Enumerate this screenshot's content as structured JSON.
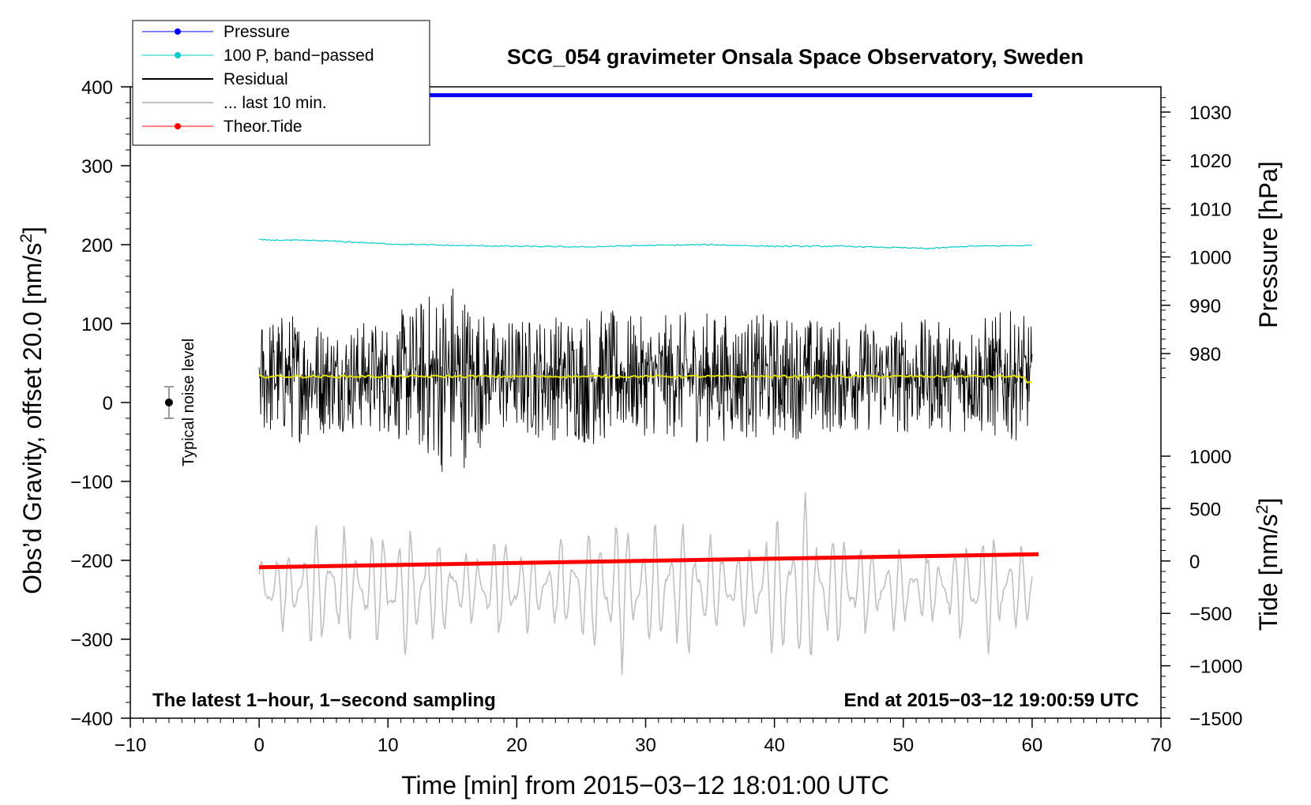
{
  "chart_data": {
    "type": "line",
    "title": "SCG_054 gravimeter Onsala Space Observatory, Sweden",
    "xlabel": "Time [min] from 2015−03−12 18:01:00 UTC",
    "ylabel_left_main": "Obs’d Gravity, offset 20.0 [nm/s",
    "ylabel_left_sup": "2",
    "ylabel_left_end": "]",
    "ylabel_right_pressure": "Pressure [hPa]",
    "ylabel_right_tide_main": "Tide [nm/s",
    "ylabel_right_tide_sup": "2",
    "ylabel_right_tide_end": "]",
    "xlim": [
      -10,
      70
    ],
    "ylim": [
      -400,
      400
    ],
    "pressure_axis_range": [
      975,
      1035
    ],
    "tide_axis_range": [
      -1500,
      1000
    ],
    "x_ticks": [
      "−10",
      "0",
      "10",
      "20",
      "30",
      "40",
      "50",
      "60",
      "70"
    ],
    "x_tick_values": [
      -10,
      0,
      10,
      20,
      30,
      40,
      50,
      60,
      70
    ],
    "y_ticks": [
      "400",
      "300",
      "200",
      "100",
      "0",
      "−100",
      "−200",
      "−300",
      "−400"
    ],
    "y_tick_values": [
      400,
      300,
      200,
      100,
      0,
      -100,
      -200,
      -300,
      -400
    ],
    "pressure_ticks": [
      "1030",
      "1020",
      "1010",
      "1000",
      "990",
      "980"
    ],
    "pressure_tick_values": [
      1030,
      1020,
      1010,
      1000,
      990,
      980
    ],
    "tide_ticks": [
      "1000",
      "500",
      "0",
      "−500",
      "−1000",
      "−1500"
    ],
    "tide_tick_values": [
      1000,
      500,
      0,
      -500,
      -1000,
      -1500
    ],
    "legend_position": "top-left",
    "legend": [
      {
        "label": "Pressure",
        "color": "#0000ff",
        "marker": true
      },
      {
        "label": "100 P, band−passed",
        "color": "#00cccc",
        "marker": true
      },
      {
        "label": "Residual",
        "color": "#000000",
        "marker": false
      },
      {
        "label": "... last 10 min.",
        "color": "#c0c0c0",
        "marker": false
      },
      {
        "label": "Theor.Tide",
        "color": "#ff0000",
        "marker": true
      }
    ],
    "series": [
      {
        "name": "Pressure",
        "color": "#0000ff",
        "axis": "pressure",
        "x": [
          0,
          60
        ],
        "values": [
          1033.5,
          1033.5
        ]
      },
      {
        "name": "100 P, band−passed",
        "color": "#00cccc",
        "axis": "left",
        "x": [
          0,
          5,
          10,
          15,
          20,
          25,
          30,
          35,
          40,
          45,
          50,
          52,
          55,
          60
        ],
        "values": [
          206,
          205,
          201,
          199,
          198,
          197,
          199,
          200,
          198,
          198,
          196,
          195,
          198,
          199
        ]
      },
      {
        "name": "Residual",
        "color": "#000000",
        "axis": "left",
        "center": 33,
        "envelope_x": [
          0,
          3,
          6,
          10,
          12,
          15,
          18,
          22,
          26,
          30,
          34,
          38,
          42,
          46,
          50,
          54,
          58,
          60
        ],
        "envelope": [
          80,
          85,
          70,
          75,
          95,
          135,
          75,
          80,
          90,
          75,
          85,
          80,
          80,
          70,
          75,
          70,
          85,
          75
        ]
      },
      {
        "name": "Residual mean",
        "color": "#e0e000",
        "axis": "left",
        "x": [
          0,
          60
        ],
        "values": [
          33,
          33
        ]
      },
      {
        "name": "... last 10 min.",
        "color": "#c0c0c0",
        "axis": "left",
        "center": -235,
        "envelope_x": [
          0,
          3,
          5,
          8,
          10,
          13,
          16,
          19,
          22,
          25,
          27,
          30,
          33,
          37,
          40,
          42,
          45,
          48,
          52,
          56,
          60
        ],
        "envelope": [
          50,
          55,
          90,
          65,
          80,
          85,
          45,
          75,
          40,
          85,
          110,
          75,
          95,
          55,
          95,
          115,
          75,
          60,
          45,
          80,
          45
        ]
      },
      {
        "name": "Theor.Tide",
        "color": "#ff0000",
        "axis": "tide",
        "x": [
          0,
          60.5
        ],
        "values": [
          -60,
          65
        ]
      }
    ],
    "noise_bar": {
      "label": "Typical noise level",
      "x": -7,
      "y": 0,
      "half_range": 20
    },
    "annotations": {
      "left": "The latest 1−hour, 1−second sampling",
      "right": "End at 2015−03−12 19:00:59 UTC"
    }
  }
}
